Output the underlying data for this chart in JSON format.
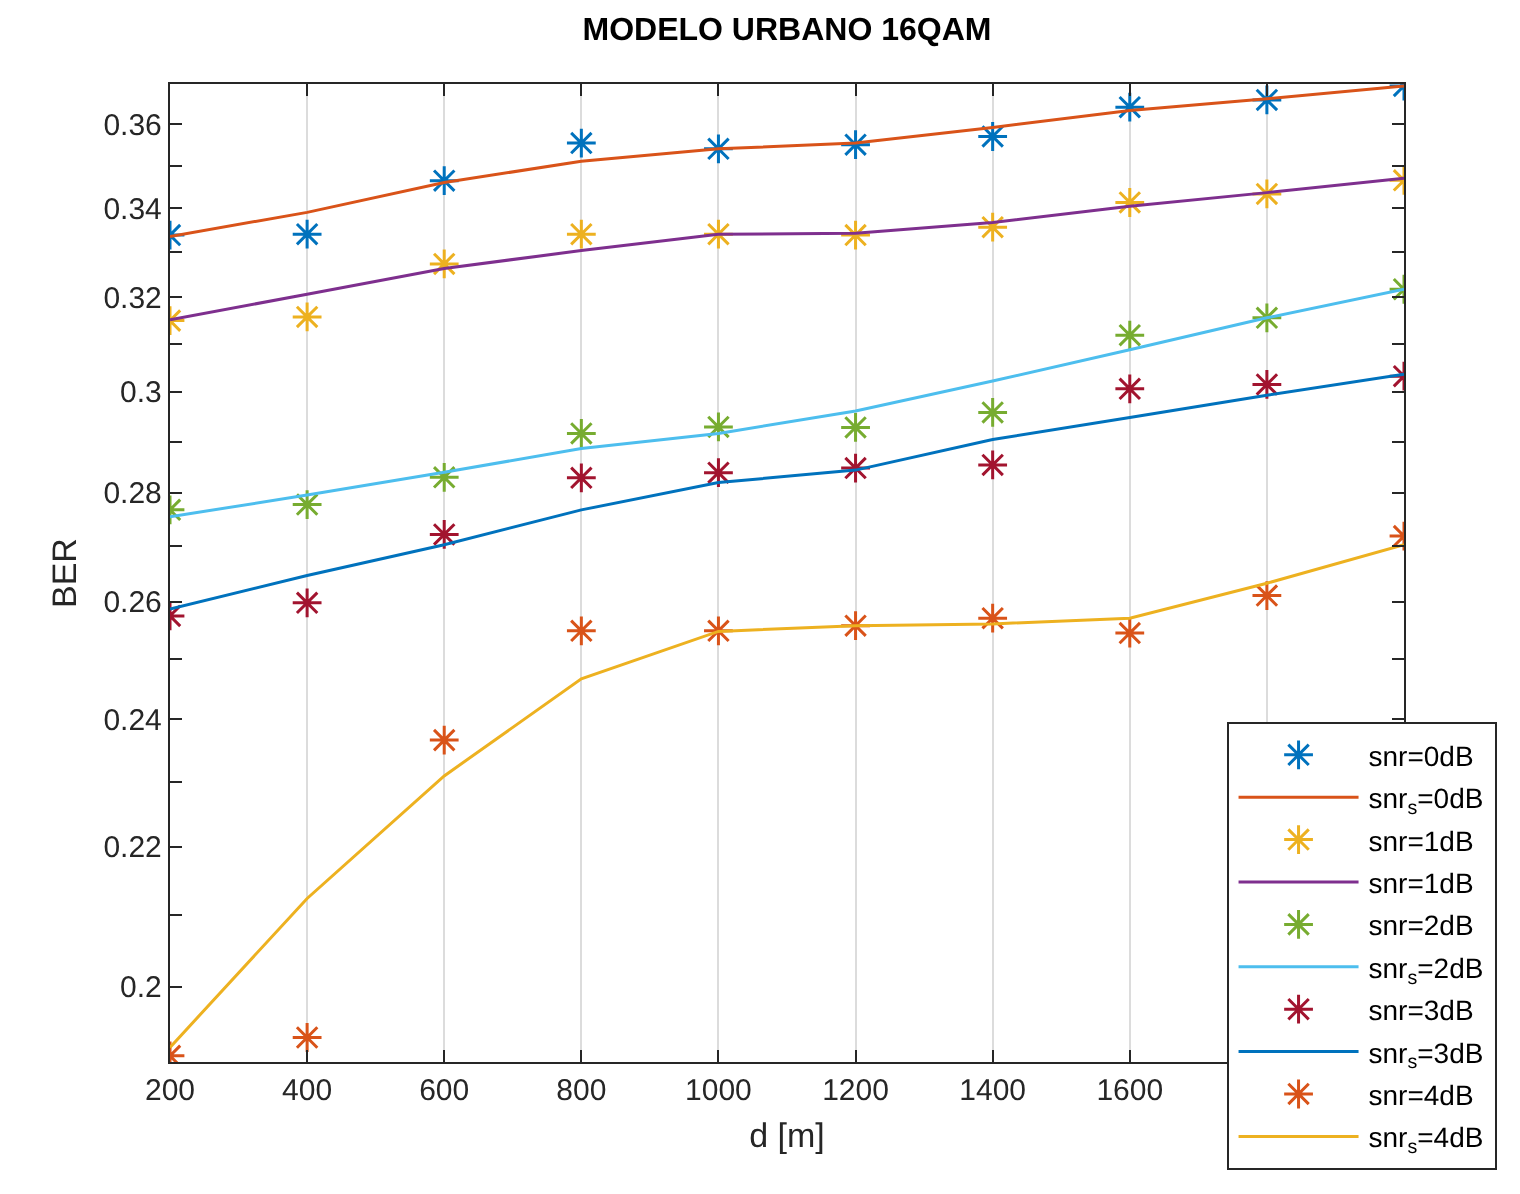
{
  "chart_data": {
    "type": "line",
    "title": "MODELO URBANO 16QAM",
    "xlabel": "d [m]",
    "ylabel": "BER",
    "x": [
      200,
      400,
      600,
      800,
      1000,
      1200,
      1400,
      1600,
      1800,
      2000
    ],
    "log": "y",
    "xlim": [
      200,
      2000
    ],
    "ylim": [
      0.19,
      0.37
    ],
    "xticks": [
      200,
      400,
      600,
      800,
      1000,
      1200,
      1400,
      1600,
      {
        "value": 1800,
        "label": null
      },
      {
        "value": 2000,
        "label": null
      }
    ],
    "yticks": [
      {
        "value": 0.19,
        "label": null
      },
      0.2,
      {
        "value": 0.21,
        "label": null
      },
      0.22,
      {
        "value": 0.23,
        "label": null
      },
      0.24,
      {
        "value": 0.25,
        "label": null
      },
      0.26,
      {
        "value": 0.27,
        "label": null
      },
      0.28,
      {
        "value": 0.29,
        "label": null
      },
      0.3,
      {
        "value": 0.31,
        "label": null
      },
      0.32,
      {
        "value": 0.33,
        "label": null
      },
      0.34,
      {
        "value": 0.35,
        "label": null
      },
      0.36,
      {
        "value": 0.37,
        "label": null
      }
    ],
    "grid": true,
    "legend": "bottom right",
    "series": [
      {
        "name": "snr=0dB",
        "type": "scatter",
        "marker": "cross",
        "color": "#0072bd",
        "values": [
          0.3338,
          0.334,
          0.3464,
          0.3554,
          0.354,
          0.355,
          0.357,
          0.3642,
          0.366,
          0.3695
        ]
      },
      {
        "name": "snr$_{s}$=0dB",
        "color": "#d95319",
        "values": [
          0.3335,
          0.339,
          0.346,
          0.351,
          0.354,
          0.3554,
          0.3592,
          0.3634,
          0.3663,
          0.3695
        ]
      },
      {
        "name": "snr=1dB",
        "type": "scatter",
        "marker": "cross",
        "color": "#edb120",
        "values": [
          0.3149,
          0.3157,
          0.3273,
          0.334,
          0.334,
          0.3338,
          0.3356,
          0.3413,
          0.3433,
          0.3465
        ]
      },
      {
        "name": "snr=1dB",
        "color": "#7e2f8e",
        "values": [
          0.3151,
          0.3206,
          0.3263,
          0.3303,
          0.334,
          0.3342,
          0.3367,
          0.3404,
          0.3436,
          0.347
        ]
      },
      {
        "name": "snr=2dB",
        "type": "scatter",
        "marker": "cross",
        "color": "#77ac30",
        "values": [
          0.2768,
          0.2778,
          0.283,
          0.2916,
          0.2929,
          0.2928,
          0.2958,
          0.3118,
          0.3155,
          0.3217
        ]
      },
      {
        "name": "snr$_{s}$=2dB",
        "color": "#4dbeee",
        "values": [
          0.2755,
          0.2796,
          0.284,
          0.2886,
          0.2916,
          0.2961,
          0.3022,
          0.3087,
          0.3155,
          0.3217
        ]
      },
      {
        "name": "snr=3dB",
        "type": "scatter",
        "marker": "cross",
        "color": "#a2142f",
        "values": [
          0.2575,
          0.2598,
          0.2722,
          0.2829,
          0.2839,
          0.2848,
          0.2854,
          0.3006,
          0.3015,
          0.3032
        ]
      },
      {
        "name": "snr$_{s}$=3dB",
        "color": "#0072bd",
        "values": [
          0.2587,
          0.2647,
          0.2703,
          0.2768,
          0.282,
          0.2844,
          0.2904,
          0.2948,
          0.2993,
          0.3036
        ]
      },
      {
        "name": "snr=4dB",
        "type": "scatter",
        "marker": "cross",
        "color": "#d95319",
        "values": [
          0.1908,
          0.1932,
          0.2366,
          0.2549,
          0.2549,
          0.2558,
          0.2571,
          0.2545,
          0.2611,
          0.2719
        ]
      },
      {
        "name": "snr$_{s}$=4dB",
        "color": "#edb120",
        "values": [
          0.1919,
          0.2124,
          0.2309,
          0.2467,
          0.2548,
          0.2558,
          0.2561,
          0.2571,
          0.2633,
          0.2703
        ]
      }
    ]
  }
}
